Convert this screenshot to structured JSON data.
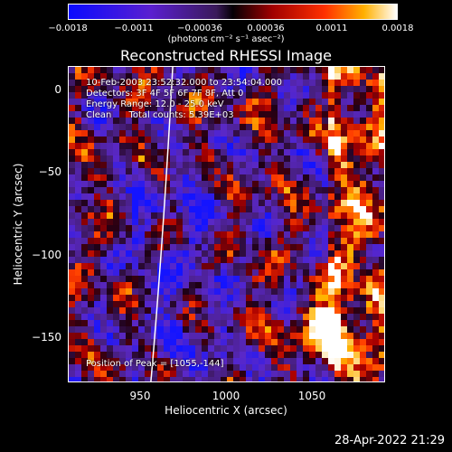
{
  "chart_data": {
    "type": "heatmap",
    "title": "Reconstructed RHESSI Image",
    "xlabel": "Heliocentric X (arcsec)",
    "ylabel": "Heliocentric Y (arcsec)",
    "xlim": [
      905,
      1093
    ],
    "ylim": [
      -178,
      13
    ],
    "x_ticks": [
      "950",
      "1000",
      "1050"
    ],
    "y_ticks": [
      "0",
      "−50",
      "−100",
      "−150"
    ],
    "colorbar": {
      "ticks": [
        "−0.0018",
        "−0.0011",
        "−0.00036",
        "0.00036",
        "0.0011",
        "0.0018"
      ],
      "units": "(photons cm⁻² s⁻¹ asec⁻²)",
      "range": [
        -0.0018,
        0.0018
      ]
    },
    "annotations": {
      "time": "10-Feb-2003 23:52:32.000 to 23:54:04.000",
      "detectors": "Detectors: 3F 4F 5F 6F 7F 8F, Att 0",
      "energy": "Energy Range: 12.0 - 25.0 keV",
      "clean": "Clean      Total counts: 5.39E+03",
      "peak": "Position of Peak = [1055,-144]"
    },
    "peak": [
      1055,
      -144
    ]
  },
  "timestamp": "28-Apr-2022 21:29"
}
